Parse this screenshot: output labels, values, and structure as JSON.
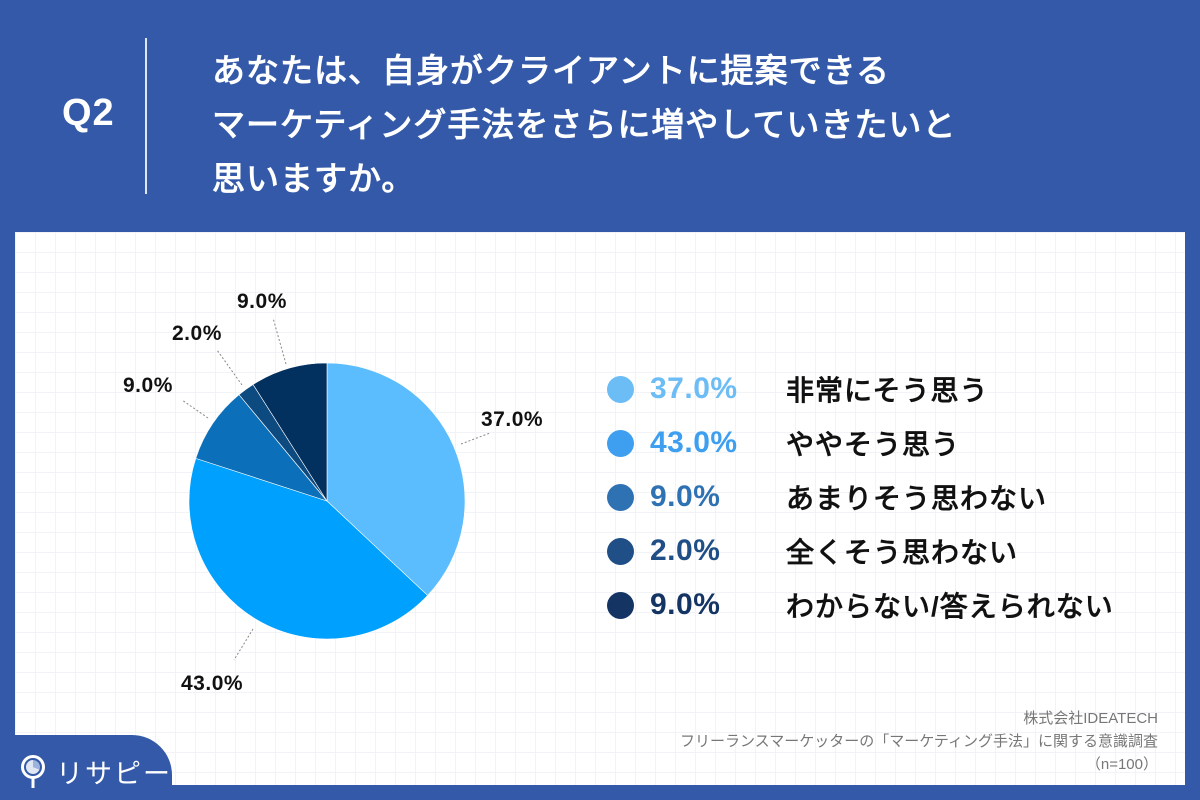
{
  "header": {
    "question_number": "Q2",
    "question_lines": [
      "あなたは、自身がクライアントに提案できる",
      "マーケティング手法をさらに増やしていきたいと",
      "思いますか。"
    ]
  },
  "legend": [
    {
      "pct": "37.0%",
      "label": "非常にそう思う",
      "color": "#6cbcf5"
    },
    {
      "pct": "43.0%",
      "label": "ややそう思う",
      "color": "#3e9ff0"
    },
    {
      "pct": "9.0%",
      "label": "あまりそう思わない",
      "color": "#2f72b4"
    },
    {
      "pct": "2.0%",
      "label": "全くそう思わない",
      "color": "#1f4f86"
    },
    {
      "pct": "9.0%",
      "label": "わからない/答えられない",
      "color": "#143564"
    }
  ],
  "pie_labels": [
    "37.0%",
    "43.0%",
    "9.0%",
    "2.0%",
    "9.0%"
  ],
  "source": {
    "company": "株式会社IDEATECH",
    "survey": "フリーランスマーケッターの「マーケティング手法」に関する意識調査",
    "sample": "（n=100）"
  },
  "logo": {
    "text": "リサピー"
  },
  "chart_data": {
    "type": "pie",
    "title": "あなたは、自身がクライアントに提案できるマーケティング手法をさらに増やしていきたいと思いますか。",
    "categories": [
      "非常にそう思う",
      "ややそう思う",
      "あまりそう思わない",
      "全くそう思わない",
      "わからない/答えられない"
    ],
    "values": [
      37.0,
      43.0,
      9.0,
      2.0,
      9.0
    ],
    "colors": [
      "#5bbdfd",
      "#00a0ff",
      "#0c6fb9",
      "#0d4a80",
      "#02305f"
    ],
    "start_angle": "12 o'clock, clockwise",
    "legend_position": "right",
    "n": 100
  }
}
